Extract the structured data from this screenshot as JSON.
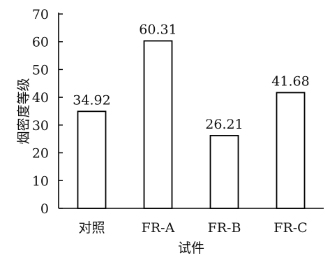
{
  "chart_data": {
    "type": "bar",
    "categories": [
      "对照",
      "FR-A",
      "FR-B",
      "FR-C"
    ],
    "values": [
      34.92,
      60.31,
      26.21,
      41.68
    ],
    "data_labels": [
      "34.92",
      "60.31",
      "26.21",
      "41.68"
    ],
    "title": "",
    "xlabel": "试件",
    "ylabel": "烟密度等级",
    "ylim": [
      0,
      70
    ],
    "yticks": [
      0,
      10,
      20,
      30,
      40,
      50,
      60,
      70
    ],
    "grid": false,
    "legend": "none",
    "bar_fill": "#ffffff",
    "bar_stroke": "#000000"
  }
}
